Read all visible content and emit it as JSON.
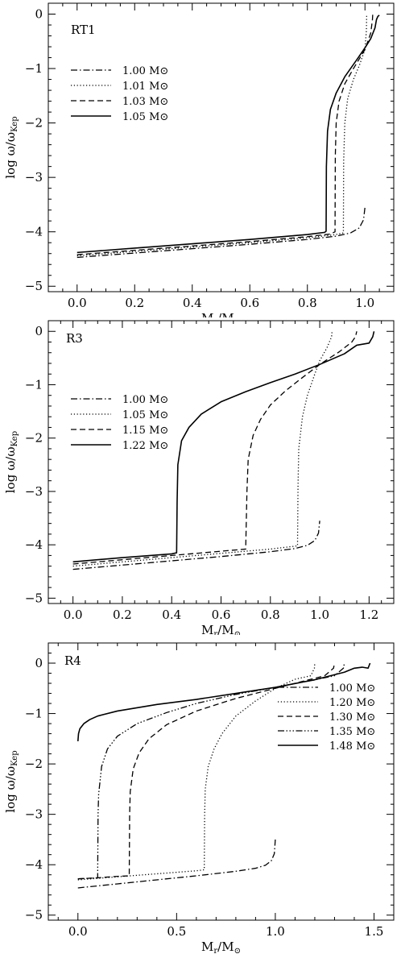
{
  "chart_data": [
    {
      "type": "line",
      "panel_label": "RT1",
      "xlabel": "M_r/M_⊙",
      "ylabel": "log ω/ω_Kep",
      "xlim": [
        -0.1,
        1.1
      ],
      "ylim": [
        -5.1,
        0.2
      ],
      "xticks": [
        0.0,
        0.2,
        0.4,
        0.6,
        0.8,
        1.0
      ],
      "xtick_labels": [
        "0.0",
        "0.2",
        "0.4",
        "0.6",
        "0.8",
        "1.0"
      ],
      "yticks": [
        0,
        -1,
        -2,
        -3,
        -4,
        -5
      ],
      "ytick_labels": [
        "0",
        "−1",
        "−2",
        "−3",
        "−4",
        "−5"
      ],
      "legend_position": "left",
      "series": [
        {
          "name": "1.00 M⊙",
          "style": "dashdot",
          "x": [
            0.0,
            0.2,
            0.4,
            0.6,
            0.8,
            0.9,
            0.95,
            0.98,
            0.995,
            1.0
          ],
          "y": [
            -4.47,
            -4.39,
            -4.31,
            -4.23,
            -4.14,
            -4.08,
            -4.02,
            -3.93,
            -3.78,
            -3.55
          ]
        },
        {
          "name": "1.01 M⊙",
          "style": "dotted",
          "x": [
            0.0,
            0.2,
            0.4,
            0.6,
            0.8,
            0.9,
            0.925,
            0.926,
            0.93,
            0.94,
            0.96,
            0.98,
            1.0,
            1.005,
            1.006
          ],
          "y": [
            -4.44,
            -4.36,
            -4.28,
            -4.2,
            -4.11,
            -4.05,
            -4.02,
            -2.7,
            -2.0,
            -1.55,
            -1.2,
            -0.95,
            -0.65,
            -0.3,
            0.0
          ]
        },
        {
          "name": "1.03 M⊙",
          "style": "dashed",
          "x": [
            0.0,
            0.2,
            0.4,
            0.6,
            0.8,
            0.88,
            0.896,
            0.897,
            0.9,
            0.91,
            0.93,
            0.96,
            1.0,
            1.02,
            1.026,
            1.027
          ],
          "y": [
            -4.42,
            -4.34,
            -4.26,
            -4.18,
            -4.09,
            -4.04,
            -4.0,
            -2.6,
            -2.0,
            -1.6,
            -1.28,
            -1.0,
            -0.65,
            -0.35,
            -0.1,
            0.0
          ]
        },
        {
          "name": "1.05 M⊙",
          "style": "solid",
          "x": [
            0.0,
            0.2,
            0.4,
            0.6,
            0.8,
            0.86,
            0.865,
            0.866,
            0.87,
            0.88,
            0.9,
            0.93,
            0.97,
            1.0,
            1.02,
            1.035,
            1.04,
            1.045,
            1.05
          ],
          "y": [
            -4.38,
            -4.3,
            -4.22,
            -4.14,
            -4.05,
            -4.01,
            -3.99,
            -2.8,
            -2.15,
            -1.75,
            -1.45,
            -1.15,
            -0.85,
            -0.62,
            -0.45,
            -0.25,
            -0.1,
            -0.04,
            -0.02
          ]
        }
      ]
    },
    {
      "type": "line",
      "panel_label": "R3",
      "xlabel": "M_r/M_⊙",
      "ylabel": "log ω/ω_Kep",
      "xlim": [
        -0.1,
        1.3
      ],
      "ylim": [
        -5.1,
        0.2
      ],
      "xticks": [
        0.0,
        0.2,
        0.4,
        0.6,
        0.8,
        1.0,
        1.2
      ],
      "xtick_labels": [
        "0.0",
        "0.2",
        "0.4",
        "0.6",
        "0.8",
        "1.0",
        "1.2"
      ],
      "yticks": [
        0,
        -1,
        -2,
        -3,
        -4,
        -5
      ],
      "ytick_labels": [
        "0",
        "−1",
        "−2",
        "−3",
        "−4",
        "−5"
      ],
      "legend_position": "left",
      "series": [
        {
          "name": "1.00 M⊙",
          "style": "dashdot",
          "x": [
            0.0,
            0.2,
            0.4,
            0.6,
            0.8,
            0.9,
            0.95,
            0.98,
            0.995,
            1.0
          ],
          "y": [
            -4.46,
            -4.38,
            -4.3,
            -4.22,
            -4.13,
            -4.07,
            -4.01,
            -3.92,
            -3.78,
            -3.55
          ]
        },
        {
          "name": "1.05 M⊙",
          "style": "dotted",
          "x": [
            0.0,
            0.2,
            0.4,
            0.6,
            0.8,
            0.91,
            0.912,
            0.915,
            0.93,
            0.95,
            0.98,
            1.0,
            1.03,
            1.048,
            1.05
          ],
          "y": [
            -4.4,
            -4.32,
            -4.24,
            -4.16,
            -4.08,
            -4.02,
            -2.9,
            -2.2,
            -1.6,
            -1.2,
            -0.8,
            -0.55,
            -0.3,
            -0.1,
            0.0
          ]
        },
        {
          "name": "1.15 M⊙",
          "style": "dashed",
          "x": [
            0.0,
            0.2,
            0.4,
            0.6,
            0.7,
            0.705,
            0.71,
            0.73,
            0.76,
            0.8,
            0.86,
            0.92,
            1.0,
            1.08,
            1.13,
            1.145,
            1.15
          ],
          "y": [
            -4.36,
            -4.28,
            -4.2,
            -4.12,
            -4.08,
            -3.0,
            -2.4,
            -1.95,
            -1.65,
            -1.38,
            -1.12,
            -0.9,
            -0.62,
            -0.38,
            -0.2,
            -0.1,
            0.0
          ]
        },
        {
          "name": "1.22 M⊙",
          "style": "solid",
          "x": [
            0.0,
            0.2,
            0.4,
            0.42,
            0.422,
            0.425,
            0.44,
            0.47,
            0.52,
            0.6,
            0.7,
            0.8,
            0.9,
            1.0,
            1.1,
            1.15,
            1.2,
            1.215,
            1.22
          ],
          "y": [
            -4.32,
            -4.24,
            -4.17,
            -4.15,
            -3.2,
            -2.5,
            -2.05,
            -1.8,
            -1.55,
            -1.32,
            -1.13,
            -0.96,
            -0.8,
            -0.62,
            -0.42,
            -0.26,
            -0.22,
            -0.1,
            0.0
          ]
        }
      ]
    },
    {
      "type": "line",
      "panel_label": "R4",
      "xlabel": "M_r/M_⊙",
      "ylabel": "log ω/ω_Kep",
      "xlim": [
        -0.15,
        1.6
      ],
      "ylim": [
        -5.1,
        0.4
      ],
      "xticks": [
        0.0,
        0.5,
        1.0,
        1.5
      ],
      "xtick_labels": [
        "0.0",
        "0.5",
        "1.0",
        "1.5"
      ],
      "yticks": [
        0,
        -1,
        -2,
        -3,
        -4,
        -5
      ],
      "ytick_labels": [
        "0",
        "−1",
        "−2",
        "−3",
        "−4",
        "−5"
      ],
      "legend_position": "right",
      "series": [
        {
          "name": "1.00 M⊙",
          "style": "dashdot",
          "x": [
            0.0,
            0.2,
            0.4,
            0.6,
            0.8,
            0.9,
            0.95,
            0.98,
            0.995,
            1.0
          ],
          "y": [
            -4.46,
            -4.38,
            -4.3,
            -4.22,
            -4.13,
            -4.07,
            -4.01,
            -3.92,
            -3.78,
            -3.5
          ]
        },
        {
          "name": "1.20 M⊙",
          "style": "dotted",
          "x": [
            0.0,
            0.2,
            0.4,
            0.6,
            0.64,
            0.642,
            0.645,
            0.66,
            0.69,
            0.73,
            0.8,
            0.9,
            1.0,
            1.1,
            1.18,
            1.198,
            1.2
          ],
          "y": [
            -4.3,
            -4.24,
            -4.18,
            -4.12,
            -4.1,
            -3.0,
            -2.5,
            -2.05,
            -1.7,
            -1.4,
            -1.05,
            -0.75,
            -0.5,
            -0.32,
            -0.25,
            -0.1,
            0.0
          ]
        },
        {
          "name": "1.30 M⊙",
          "style": "dashed",
          "x": [
            0.0,
            0.1,
            0.2,
            0.26,
            0.262,
            0.265,
            0.28,
            0.31,
            0.36,
            0.45,
            0.6,
            0.8,
            1.0,
            1.15,
            1.25,
            1.295,
            1.3
          ],
          "y": [
            -4.28,
            -4.26,
            -4.23,
            -4.22,
            -3.0,
            -2.55,
            -2.1,
            -1.78,
            -1.5,
            -1.22,
            -0.95,
            -0.7,
            -0.5,
            -0.35,
            -0.25,
            -0.1,
            0.0
          ]
        },
        {
          "name": "1.35 M⊙",
          "style": "dashdotdotdot",
          "x": [
            0.0,
            0.05,
            0.1,
            0.102,
            0.105,
            0.12,
            0.15,
            0.2,
            0.3,
            0.45,
            0.6,
            0.8,
            1.0,
            1.2,
            1.3,
            1.345,
            1.35
          ],
          "y": [
            -4.28,
            -4.27,
            -4.26,
            -3.0,
            -2.6,
            -2.05,
            -1.7,
            -1.45,
            -1.2,
            -0.98,
            -0.8,
            -0.62,
            -0.48,
            -0.33,
            -0.25,
            -0.1,
            0.0
          ]
        },
        {
          "name": "1.48 M⊙",
          "style": "solid",
          "x": [
            0.0,
            0.003,
            0.01,
            0.03,
            0.06,
            0.1,
            0.2,
            0.4,
            0.6,
            0.8,
            1.0,
            1.2,
            1.35,
            1.4,
            1.44,
            1.47,
            1.48
          ],
          "y": [
            -1.55,
            -1.4,
            -1.3,
            -1.2,
            -1.12,
            -1.05,
            -0.95,
            -0.82,
            -0.72,
            -0.6,
            -0.48,
            -0.33,
            -0.18,
            -0.1,
            -0.08,
            -0.1,
            0.0
          ]
        }
      ]
    }
  ]
}
